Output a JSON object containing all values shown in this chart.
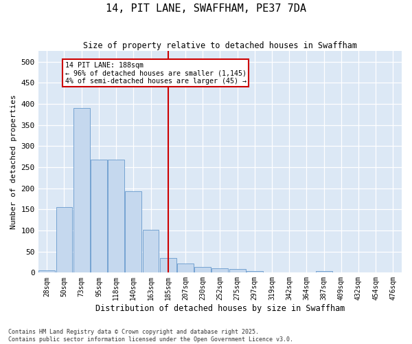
{
  "title": "14, PIT LANE, SWAFFHAM, PE37 7DA",
  "subtitle": "Size of property relative to detached houses in Swaffham",
  "xlabel": "Distribution of detached houses by size in Swaffham",
  "ylabel": "Number of detached properties",
  "bar_color": "#c5d8ee",
  "bar_edge_color": "#6699cc",
  "background_color": "#dce8f5",
  "fig_background": "#ffffff",
  "grid_color": "#ffffff",
  "vline_color": "#cc0000",
  "annotation_title": "14 PIT LANE: 188sqm",
  "annotation_line1": "← 96% of detached houses are smaller (1,145)",
  "annotation_line2": "4% of semi-detached houses are larger (45) →",
  "annotation_box_color": "#cc0000",
  "categories": [
    "28sqm",
    "50sqm",
    "73sqm",
    "95sqm",
    "118sqm",
    "140sqm",
    "163sqm",
    "185sqm",
    "207sqm",
    "230sqm",
    "252sqm",
    "275sqm",
    "297sqm",
    "319sqm",
    "342sqm",
    "364sqm",
    "387sqm",
    "409sqm",
    "432sqm",
    "454sqm",
    "476sqm"
  ],
  "bar_heights": [
    5,
    155,
    390,
    268,
    268,
    193,
    102,
    35,
    22,
    13,
    10,
    8,
    3,
    0,
    0,
    0,
    3,
    0,
    0,
    0,
    0
  ],
  "ylim": [
    0,
    525
  ],
  "yticks": [
    0,
    50,
    100,
    150,
    200,
    250,
    300,
    350,
    400,
    450,
    500
  ],
  "footnote1": "Contains HM Land Registry data © Crown copyright and database right 2025.",
  "footnote2": "Contains public sector information licensed under the Open Government Licence v3.0."
}
